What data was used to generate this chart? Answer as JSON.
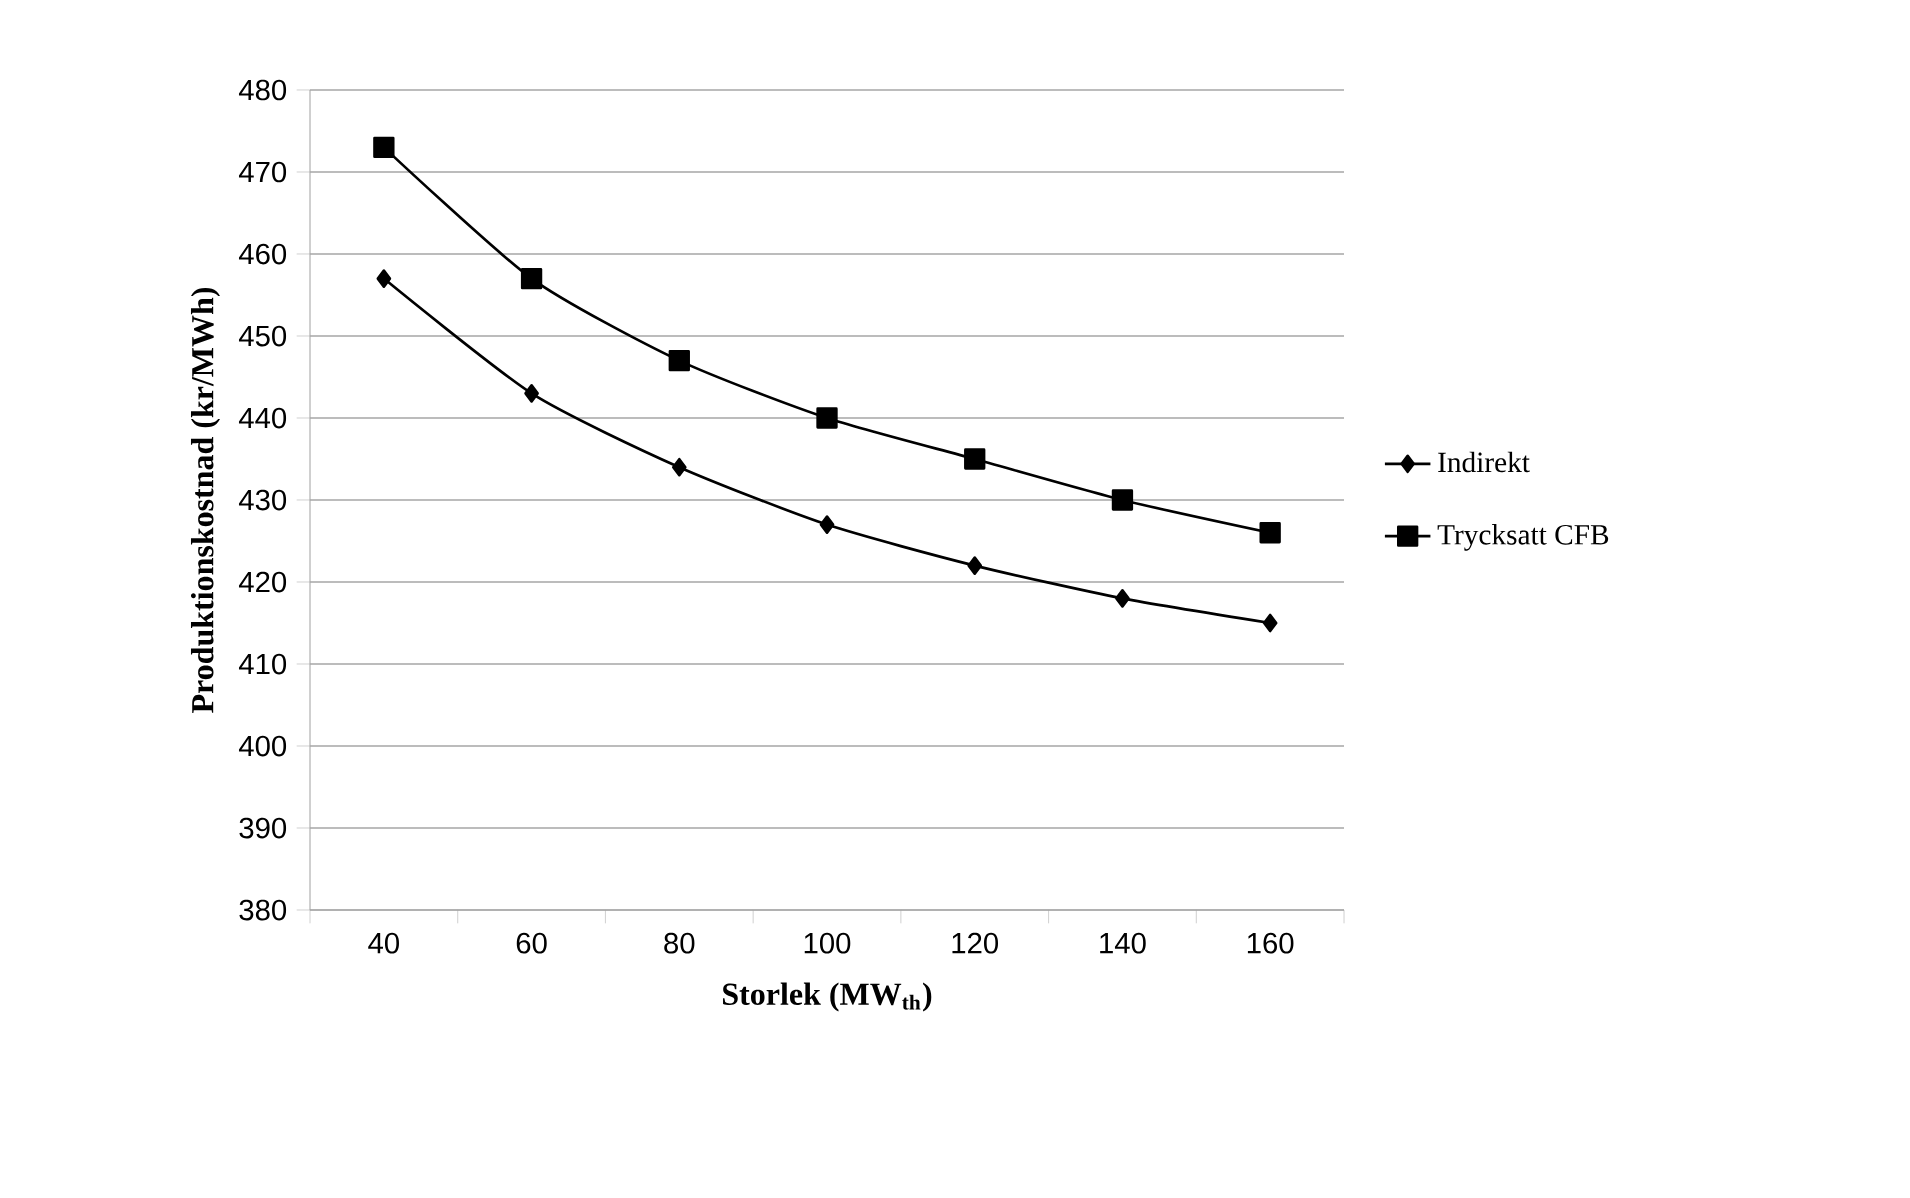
{
  "chart_data": {
    "type": "line",
    "xlabel": "Storlek (MW$_{th}$)",
    "ylabel": "Produktionskostnad (kr/MWh)",
    "categories": [
      "40",
      "60",
      "80",
      "100",
      "120",
      "140",
      "160"
    ],
    "series": [
      {
        "name": "Indirekt",
        "color": "#000000",
        "marker": "diamond",
        "values": [
          457,
          443,
          434,
          427,
          422,
          418,
          415
        ]
      },
      {
        "name": "Trycksatt CFB",
        "color": "#000000",
        "marker": "square",
        "values": [
          473,
          457,
          447,
          440,
          435,
          430,
          426
        ]
      }
    ],
    "ylim": [
      380,
      480
    ],
    "yticks": [
      380,
      390,
      400,
      410,
      420,
      430,
      440,
      450,
      460,
      470,
      480
    ],
    "grid": "y",
    "legend": "right",
    "line_style": "solid"
  }
}
